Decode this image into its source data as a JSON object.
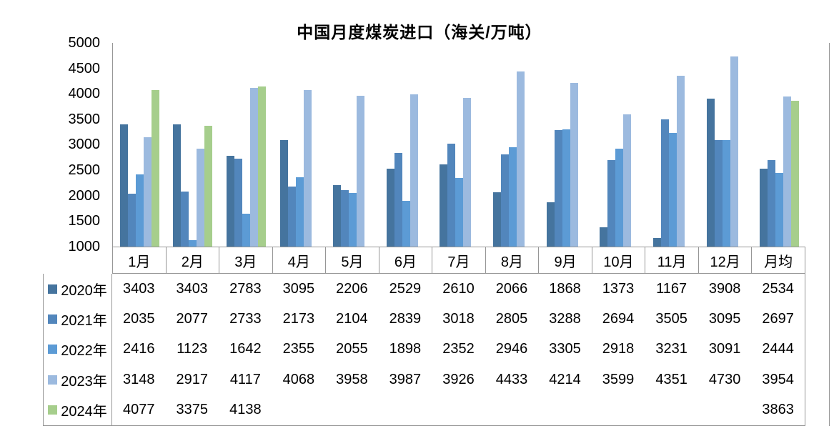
{
  "title": "中国月度煤炭进口（海关/万吨）",
  "chart_data": {
    "type": "bar",
    "title": "中国月度煤炭进口（海关/万吨）",
    "categories": [
      "1月",
      "2月",
      "3月",
      "4月",
      "5月",
      "6月",
      "7月",
      "8月",
      "9月",
      "10月",
      "11月",
      "12月",
      "月均"
    ],
    "series": [
      {
        "name": "2020年",
        "color": "#45749E",
        "values": [
          3403,
          3403,
          2783,
          3095,
          2206,
          2529,
          2610,
          2066,
          1868,
          1373,
          1167,
          3908,
          2534
        ]
      },
      {
        "name": "2021年",
        "color": "#5286BC",
        "values": [
          2035,
          2077,
          2733,
          2173,
          2104,
          2839,
          3018,
          2805,
          3288,
          2694,
          3505,
          3095,
          2697
        ]
      },
      {
        "name": "2022年",
        "color": "#5C9BD5",
        "values": [
          2416,
          1123,
          1642,
          2355,
          2055,
          1898,
          2352,
          2946,
          3305,
          2918,
          3231,
          3091,
          2444
        ]
      },
      {
        "name": "2023年",
        "color": "#9CBADF",
        "values": [
          3148,
          2917,
          4117,
          4068,
          3958,
          3987,
          3926,
          4433,
          4214,
          3599,
          4351,
          4730,
          3954
        ]
      },
      {
        "name": "2024年",
        "color": "#A6CE8C",
        "values": [
          4077,
          3375,
          4138,
          null,
          null,
          null,
          null,
          null,
          null,
          null,
          null,
          null,
          3863
        ]
      }
    ],
    "y_axis": {
      "min": 1000,
      "max": 5000,
      "step": 500,
      "ticks": [
        5000,
        4500,
        4000,
        3500,
        3000,
        2500,
        2000,
        1500,
        1000
      ]
    },
    "grid": false,
    "legend_position": "table-left",
    "axis_color": "#969696"
  }
}
